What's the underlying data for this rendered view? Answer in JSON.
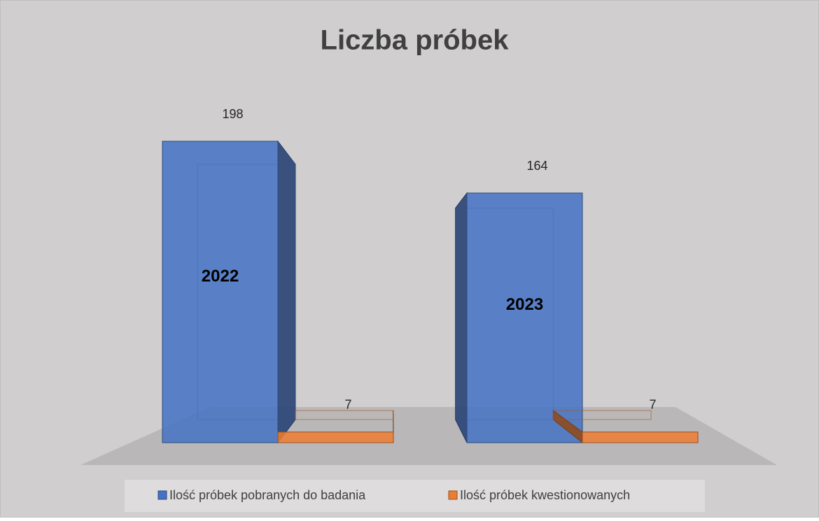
{
  "chart_data": {
    "type": "bar3d",
    "title": "Liczba próbek",
    "categories": [
      "2022",
      "2023"
    ],
    "series": [
      {
        "name": "Ilość próbek pobranych do badania",
        "color": "#4472c4",
        "values": [
          198,
          164
        ]
      },
      {
        "name": "Ilość próbek kwestionowanych",
        "color": "#ed7d31",
        "values": [
          7,
          7
        ]
      }
    ]
  }
}
